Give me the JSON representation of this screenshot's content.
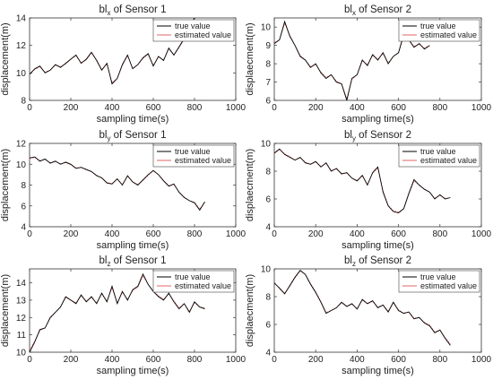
{
  "chart_data": [
    {
      "type": "line",
      "title_prefix": "bl",
      "title_sub": "x",
      "title_suffix": " of Sensor 1",
      "xlabel": "sampling time(s)",
      "ylabel": "displacement(m)",
      "xlim": [
        0,
        1000
      ],
      "ylim": [
        8,
        14
      ],
      "xticks": [
        0,
        200,
        400,
        600,
        800,
        1000
      ],
      "yticks": [
        8,
        10,
        12,
        14
      ],
      "legend": [
        "true value",
        "estimated value"
      ],
      "legend_position": "top-right",
      "series": [
        {
          "name": "true value",
          "color": "#000000",
          "x": [
            0,
            25,
            50,
            75,
            100,
            125,
            150,
            175,
            200,
            225,
            250,
            275,
            300,
            325,
            350,
            375,
            400,
            425,
            450,
            475,
            500,
            525,
            550,
            575,
            600,
            625,
            650,
            675,
            700,
            725,
            750,
            775,
            800
          ],
          "y": [
            9.9,
            10.3,
            10.5,
            10.0,
            10.2,
            10.6,
            10.4,
            10.7,
            11.0,
            11.3,
            10.7,
            11.0,
            11.5,
            10.9,
            10.2,
            10.7,
            9.2,
            9.6,
            10.6,
            11.3,
            10.3,
            10.6,
            11.1,
            11.4,
            10.5,
            11.2,
            10.9,
            11.8,
            11.3,
            11.9,
            12.5,
            13.4,
            14.0
          ]
        },
        {
          "name": "estimated value",
          "color": "#e06666",
          "x": [
            0,
            25,
            50,
            75,
            100,
            125,
            150,
            175,
            200,
            225,
            250,
            275,
            300,
            325,
            350,
            375,
            400,
            425,
            450,
            475,
            500,
            525,
            550,
            575,
            600,
            625,
            650,
            675,
            700,
            725,
            750,
            775,
            800
          ],
          "y": [
            9.95,
            10.25,
            10.45,
            10.05,
            10.2,
            10.55,
            10.45,
            10.65,
            11.0,
            11.25,
            10.75,
            10.95,
            11.45,
            10.95,
            10.25,
            10.65,
            9.3,
            9.6,
            10.55,
            11.25,
            10.35,
            10.6,
            11.05,
            11.35,
            10.55,
            11.15,
            10.95,
            11.75,
            11.3,
            11.85,
            12.45,
            13.35,
            13.95
          ]
        }
      ]
    },
    {
      "type": "line",
      "title_prefix": "bl",
      "title_sub": "x",
      "title_suffix": " of Sensor 2",
      "xlabel": "sampling time(s)",
      "ylabel": "displaecment(m)",
      "xlim": [
        0,
        1000
      ],
      "ylim": [
        6,
        10.5
      ],
      "xticks": [
        0,
        200,
        400,
        600,
        800,
        1000
      ],
      "yticks": [
        6,
        7,
        8,
        9,
        10
      ],
      "legend": [
        "true value",
        "estimated value"
      ],
      "legend_position": "top-right",
      "series": [
        {
          "name": "true value",
          "color": "#000000",
          "x": [
            0,
            25,
            50,
            75,
            100,
            125,
            150,
            175,
            200,
            225,
            250,
            275,
            300,
            325,
            350,
            375,
            400,
            425,
            450,
            475,
            500,
            525,
            550,
            575,
            600,
            625,
            650,
            675,
            700,
            725,
            750
          ],
          "y": [
            9.1,
            9.3,
            10.3,
            9.5,
            9.0,
            8.4,
            8.2,
            7.8,
            8.0,
            7.5,
            7.2,
            7.4,
            7.0,
            6.9,
            6.0,
            7.2,
            7.4,
            8.2,
            7.9,
            8.5,
            8.2,
            8.6,
            8.0,
            8.4,
            8.6,
            9.6,
            9.3,
            8.9,
            9.1,
            8.8,
            9.0
          ]
        },
        {
          "name": "estimated value",
          "color": "#e06666",
          "x": [
            0,
            25,
            50,
            75,
            100,
            125,
            150,
            175,
            200,
            225,
            250,
            275,
            300,
            325,
            350,
            375,
            400,
            425,
            450,
            475,
            500,
            525,
            550,
            575,
            600,
            625,
            650,
            675,
            700,
            725,
            750
          ],
          "y": [
            9.15,
            9.3,
            10.2,
            9.55,
            9.0,
            8.45,
            8.2,
            7.85,
            7.95,
            7.55,
            7.25,
            7.4,
            7.05,
            6.9,
            6.1,
            7.15,
            7.4,
            8.15,
            7.95,
            8.45,
            8.25,
            8.55,
            8.05,
            8.4,
            8.6,
            9.5,
            9.3,
            8.95,
            9.05,
            8.85,
            9.0
          ]
        }
      ]
    },
    {
      "type": "line",
      "title_prefix": "bl",
      "title_sub": "y",
      "title_suffix": " of Sensor 1",
      "xlabel": "sampling time(s)",
      "ylabel": "displacement(m)",
      "xlim": [
        0,
        1000
      ],
      "ylim": [
        4,
        12
      ],
      "xticks": [
        0,
        200,
        400,
        600,
        800,
        1000
      ],
      "yticks": [
        4,
        6,
        8,
        10,
        12
      ],
      "legend": [
        "true value",
        "estimated value"
      ],
      "legend_position": "top-right",
      "series": [
        {
          "name": "true value",
          "color": "#000000",
          "x": [
            0,
            25,
            50,
            75,
            100,
            125,
            150,
            175,
            200,
            225,
            250,
            275,
            300,
            325,
            350,
            375,
            400,
            425,
            450,
            475,
            500,
            525,
            550,
            575,
            600,
            625,
            650,
            675,
            700,
            725,
            750,
            775,
            800,
            825,
            850
          ],
          "y": [
            10.6,
            10.7,
            10.3,
            10.5,
            10.1,
            10.3,
            10.0,
            10.2,
            10.0,
            9.6,
            9.7,
            9.5,
            9.3,
            8.9,
            8.7,
            8.2,
            8.1,
            8.6,
            8.0,
            8.9,
            8.3,
            8.0,
            8.5,
            9.0,
            9.4,
            9.0,
            8.4,
            7.9,
            8.1,
            7.3,
            6.8,
            6.5,
            6.3,
            5.6,
            6.4
          ]
        },
        {
          "name": "estimated value",
          "color": "#e06666",
          "x": [
            0,
            25,
            50,
            75,
            100,
            125,
            150,
            175,
            200,
            225,
            250,
            275,
            300,
            325,
            350,
            375,
            400,
            425,
            450,
            475,
            500,
            525,
            550,
            575,
            600,
            625,
            650,
            675,
            700,
            725,
            750,
            775,
            800,
            825,
            850
          ],
          "y": [
            10.55,
            10.65,
            10.35,
            10.45,
            10.15,
            10.25,
            10.05,
            10.15,
            9.95,
            9.65,
            9.7,
            9.45,
            9.3,
            8.95,
            8.7,
            8.25,
            8.15,
            8.55,
            8.05,
            8.85,
            8.3,
            8.05,
            8.45,
            8.95,
            9.35,
            9.0,
            8.45,
            7.95,
            8.05,
            7.35,
            6.85,
            6.5,
            6.35,
            5.7,
            6.35
          ]
        }
      ]
    },
    {
      "type": "line",
      "title_prefix": "bl",
      "title_sub": "y",
      "title_suffix": " of Sensor 2",
      "xlabel": "sampling time(s)",
      "ylabel": "displaecment(m)",
      "xlim": [
        0,
        1000
      ],
      "ylim": [
        4,
        10
      ],
      "xticks": [
        0,
        200,
        400,
        600,
        800,
        1000
      ],
      "yticks": [
        4,
        6,
        8,
        10
      ],
      "legend": [
        "true value",
        "estimated value"
      ],
      "legend_position": "top-right",
      "series": [
        {
          "name": "true value",
          "color": "#000000",
          "x": [
            0,
            25,
            50,
            75,
            100,
            125,
            150,
            175,
            200,
            225,
            250,
            275,
            300,
            325,
            350,
            375,
            400,
            425,
            450,
            475,
            500,
            525,
            550,
            575,
            600,
            625,
            650,
            675,
            700,
            725,
            750,
            775,
            800,
            825,
            850
          ],
          "y": [
            9.3,
            9.6,
            9.2,
            9.0,
            8.8,
            9.0,
            8.6,
            8.5,
            8.7,
            8.3,
            8.6,
            8.0,
            8.2,
            7.8,
            7.9,
            7.5,
            7.3,
            7.7,
            7.0,
            7.9,
            8.3,
            6.5,
            5.5,
            5.1,
            5.0,
            5.3,
            6.4,
            7.4,
            7.0,
            6.7,
            6.5,
            6.0,
            6.3,
            6.0,
            6.1
          ]
        },
        {
          "name": "estimated value",
          "color": "#e06666",
          "x": [
            0,
            25,
            50,
            75,
            100,
            125,
            150,
            175,
            200,
            225,
            250,
            275,
            300,
            325,
            350,
            375,
            400,
            425,
            450,
            475,
            500,
            525,
            550,
            575,
            600,
            625,
            650,
            675,
            700,
            725,
            750,
            775,
            800,
            825,
            850
          ],
          "y": [
            9.25,
            9.55,
            9.25,
            9.05,
            8.8,
            8.95,
            8.65,
            8.5,
            8.65,
            8.35,
            8.55,
            8.05,
            8.15,
            7.85,
            7.85,
            7.5,
            7.35,
            7.65,
            7.05,
            7.85,
            8.2,
            6.6,
            5.55,
            5.15,
            5.05,
            5.3,
            6.35,
            7.3,
            7.0,
            6.7,
            6.5,
            6.05,
            6.25,
            6.05,
            6.1
          ]
        }
      ]
    },
    {
      "type": "line",
      "title_prefix": "bl",
      "title_sub": "z",
      "title_suffix": " of Sensor 1",
      "xlabel": "sampling time(s)",
      "ylabel": "displacement(m)",
      "xlim": [
        0,
        1000
      ],
      "ylim": [
        10,
        14.8
      ],
      "xticks": [
        0,
        200,
        400,
        600,
        800,
        1000
      ],
      "yticks": [
        10,
        11,
        12,
        13,
        14
      ],
      "legend": [
        "true value",
        "estimated value"
      ],
      "legend_position": "top-right",
      "series": [
        {
          "name": "true value",
          "color": "#000000",
          "x": [
            0,
            25,
            50,
            75,
            100,
            125,
            150,
            175,
            200,
            225,
            250,
            275,
            300,
            325,
            350,
            375,
            400,
            425,
            450,
            475,
            500,
            525,
            550,
            575,
            600,
            625,
            650,
            675,
            700,
            725,
            750,
            775,
            800,
            825,
            850
          ],
          "y": [
            10.0,
            10.6,
            11.3,
            11.4,
            12.0,
            12.3,
            12.6,
            13.2,
            13.0,
            12.8,
            13.3,
            12.9,
            13.2,
            12.8,
            13.4,
            12.9,
            13.8,
            12.8,
            13.5,
            13.0,
            13.6,
            13.8,
            14.5,
            13.9,
            13.5,
            13.2,
            13.0,
            13.4,
            12.9,
            12.5,
            12.8,
            12.3,
            12.9,
            12.6,
            12.5
          ]
        },
        {
          "name": "estimated value",
          "color": "#e06666",
          "x": [
            0,
            25,
            50,
            75,
            100,
            125,
            150,
            175,
            200,
            225,
            250,
            275,
            300,
            325,
            350,
            375,
            400,
            425,
            450,
            475,
            500,
            525,
            550,
            575,
            600,
            625,
            650,
            675,
            700,
            725,
            750,
            775,
            800,
            825,
            850
          ],
          "y": [
            10.1,
            10.65,
            11.25,
            11.4,
            11.95,
            12.3,
            12.6,
            13.15,
            13.0,
            12.85,
            13.25,
            12.95,
            13.15,
            12.85,
            13.35,
            12.95,
            13.7,
            12.85,
            13.45,
            13.05,
            13.55,
            13.75,
            14.4,
            13.9,
            13.5,
            13.25,
            13.05,
            13.35,
            12.95,
            12.55,
            12.8,
            12.35,
            12.85,
            12.6,
            12.55
          ]
        }
      ]
    },
    {
      "type": "line",
      "title_prefix": "bl",
      "title_sub": "z",
      "title_suffix": " of Sensor 2",
      "xlabel": "sampling time(s)",
      "ylabel": "displaecment(m)",
      "xlim": [
        0,
        1000
      ],
      "ylim": [
        4,
        10
      ],
      "xticks": [
        0,
        200,
        400,
        600,
        800,
        1000
      ],
      "yticks": [
        4,
        6,
        8,
        10
      ],
      "legend": [
        "true value",
        "estimated value"
      ],
      "legend_position": "top-right",
      "series": [
        {
          "name": "true value",
          "color": "#000000",
          "x": [
            0,
            25,
            50,
            75,
            100,
            125,
            150,
            175,
            200,
            225,
            250,
            275,
            300,
            325,
            350,
            375,
            400,
            425,
            450,
            475,
            500,
            525,
            550,
            575,
            600,
            625,
            650,
            675,
            700,
            725,
            750,
            775,
            800,
            825,
            850
          ],
          "y": [
            9.0,
            8.6,
            8.2,
            8.8,
            9.4,
            9.9,
            9.6,
            8.9,
            8.3,
            7.6,
            6.8,
            7.0,
            7.2,
            7.6,
            7.3,
            7.5,
            7.1,
            7.8,
            7.5,
            7.7,
            7.2,
            7.4,
            6.9,
            7.6,
            7.0,
            6.8,
            6.9,
            6.4,
            6.5,
            6.1,
            5.9,
            5.4,
            5.6,
            5.0,
            4.5
          ]
        },
        {
          "name": "estimated value",
          "color": "#e06666",
          "x": [
            0,
            25,
            50,
            75,
            100,
            125,
            150,
            175,
            200,
            225,
            250,
            275,
            300,
            325,
            350,
            375,
            400,
            425,
            450,
            475,
            500,
            525,
            550,
            575,
            600,
            625,
            650,
            675,
            700,
            725,
            750,
            775,
            800,
            825,
            850
          ],
          "y": [
            8.95,
            8.65,
            8.25,
            8.75,
            9.35,
            9.85,
            9.6,
            8.95,
            8.35,
            7.65,
            6.85,
            7.0,
            7.2,
            7.55,
            7.3,
            7.45,
            7.15,
            7.75,
            7.5,
            7.65,
            7.25,
            7.4,
            6.95,
            7.55,
            7.05,
            6.8,
            6.9,
            6.45,
            6.5,
            6.15,
            5.95,
            5.45,
            5.6,
            5.05,
            4.6
          ]
        }
      ]
    }
  ]
}
